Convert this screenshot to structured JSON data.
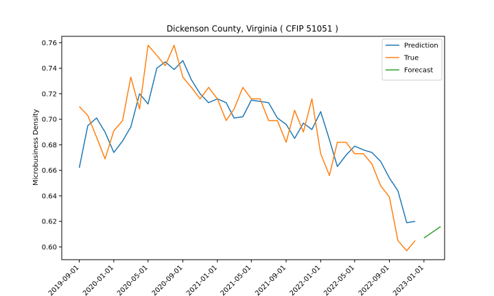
{
  "chart_data": {
    "type": "line",
    "title": "Dickenson County, Virginia ( CFIP 51051 )",
    "xlabel": "",
    "ylabel": "Microbusiness Density",
    "xlim": [
      "2019-07-01",
      "2023-03-15"
    ],
    "ylim": [
      0.59,
      0.765
    ],
    "x_ticks": [
      "2019-09-01",
      "2020-01-01",
      "2020-05-01",
      "2020-09-01",
      "2021-01-01",
      "2021-05-01",
      "2021-09-01",
      "2022-01-01",
      "2022-05-01",
      "2022-09-01",
      "2023-01-01"
    ],
    "y_ticks": [
      0.6,
      0.62,
      0.64,
      0.66,
      0.68,
      0.7,
      0.72,
      0.74,
      0.76
    ],
    "y_tick_labels": [
      "0.60",
      "0.62",
      "0.64",
      "0.66",
      "0.68",
      "0.70",
      "0.72",
      "0.74",
      "0.76"
    ],
    "grid": false,
    "legend_position": "top-right",
    "series": [
      {
        "name": "Prediction",
        "color": "#1f77b4",
        "x": [
          "2019-09-01",
          "2019-10-01",
          "2019-11-01",
          "2019-12-01",
          "2020-01-01",
          "2020-02-01",
          "2020-03-01",
          "2020-04-01",
          "2020-05-01",
          "2020-06-01",
          "2020-07-01",
          "2020-08-01",
          "2020-09-01",
          "2020-10-01",
          "2020-11-01",
          "2020-12-01",
          "2021-01-01",
          "2021-02-01",
          "2021-03-01",
          "2021-04-01",
          "2021-05-01",
          "2021-06-01",
          "2021-07-01",
          "2021-08-01",
          "2021-09-01",
          "2021-10-01",
          "2021-11-01",
          "2021-12-01",
          "2022-01-01",
          "2022-02-01",
          "2022-03-01",
          "2022-04-01",
          "2022-05-01",
          "2022-06-01",
          "2022-07-01",
          "2022-08-01",
          "2022-09-01",
          "2022-10-01",
          "2022-11-01",
          "2022-12-01"
        ],
        "values": [
          0.662,
          0.695,
          0.701,
          0.69,
          0.674,
          0.683,
          0.694,
          0.72,
          0.712,
          0.74,
          0.745,
          0.739,
          0.746,
          0.731,
          0.72,
          0.713,
          0.716,
          0.713,
          0.701,
          0.702,
          0.715,
          0.714,
          0.713,
          0.701,
          0.696,
          0.685,
          0.697,
          0.692,
          0.706,
          0.684,
          0.663,
          0.672,
          0.679,
          0.676,
          0.674,
          0.667,
          0.654,
          0.644,
          0.619,
          0.62
        ]
      },
      {
        "name": "True",
        "color": "#ff7f0e",
        "x": [
          "2019-09-01",
          "2019-10-01",
          "2019-11-01",
          "2019-12-01",
          "2020-01-01",
          "2020-02-01",
          "2020-03-01",
          "2020-04-01",
          "2020-05-01",
          "2020-06-01",
          "2020-07-01",
          "2020-08-01",
          "2020-09-01",
          "2020-10-01",
          "2020-11-01",
          "2020-12-01",
          "2021-01-01",
          "2021-02-01",
          "2021-03-01",
          "2021-04-01",
          "2021-05-01",
          "2021-06-01",
          "2021-07-01",
          "2021-08-01",
          "2021-09-01",
          "2021-10-01",
          "2021-11-01",
          "2021-12-01",
          "2022-01-01",
          "2022-02-01",
          "2022-03-01",
          "2022-04-01",
          "2022-05-01",
          "2022-06-01",
          "2022-07-01",
          "2022-08-01",
          "2022-09-01",
          "2022-10-01",
          "2022-11-01",
          "2022-12-01"
        ],
        "values": [
          0.71,
          0.703,
          0.686,
          0.669,
          0.691,
          0.699,
          0.733,
          0.708,
          0.758,
          0.75,
          0.742,
          0.758,
          0.733,
          0.725,
          0.716,
          0.725,
          0.716,
          0.699,
          0.708,
          0.725,
          0.716,
          0.716,
          0.699,
          0.699,
          0.682,
          0.707,
          0.69,
          0.716,
          0.673,
          0.656,
          0.682,
          0.682,
          0.673,
          0.673,
          0.665,
          0.648,
          0.639,
          0.605,
          0.597,
          0.605
        ]
      },
      {
        "name": "Forecast",
        "color": "#2ca02c",
        "x": [
          "2023-01-01",
          "2023-03-01"
        ],
        "values": [
          0.607,
          0.616
        ]
      }
    ]
  }
}
